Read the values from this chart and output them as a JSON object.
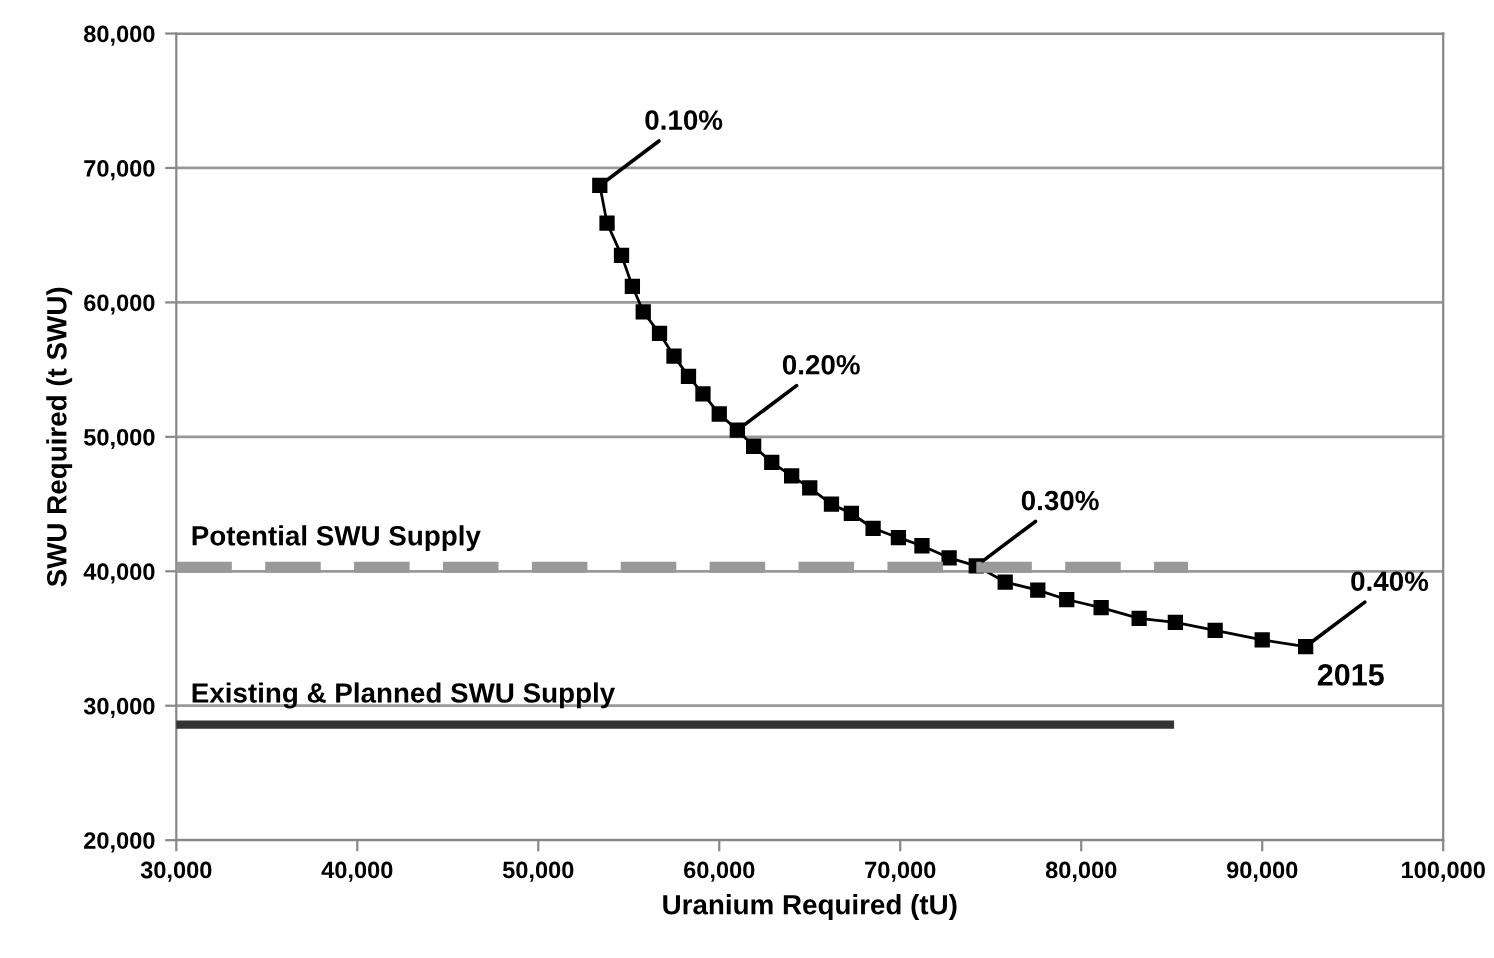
{
  "chart_data": {
    "type": "line",
    "xlabel": "Uranium Required (tU)",
    "ylabel": "SWU Required (t SWU)",
    "xlim": [
      30000,
      100000
    ],
    "ylim": [
      20000,
      80000
    ],
    "xticks": [
      {
        "value": 30000,
        "label": "30,000"
      },
      {
        "value": 40000,
        "label": "40,000"
      },
      {
        "value": 50000,
        "label": "50,000"
      },
      {
        "value": 60000,
        "label": "60,000"
      },
      {
        "value": 70000,
        "label": "70,000"
      },
      {
        "value": 80000,
        "label": "80,000"
      },
      {
        "value": 90000,
        "label": "90,000"
      },
      {
        "value": 100000,
        "label": "100,000"
      }
    ],
    "yticks": [
      {
        "value": 20000,
        "label": "20,000"
      },
      {
        "value": 30000,
        "label": "30,000"
      },
      {
        "value": 40000,
        "label": "40,000"
      },
      {
        "value": 50000,
        "label": "50,000"
      },
      {
        "value": 60000,
        "label": "60,000"
      },
      {
        "value": 70000,
        "label": "70,000"
      },
      {
        "value": 80000,
        "label": "80,000"
      }
    ],
    "grid": "y",
    "marker": "square",
    "line_style": "solid",
    "series": [
      {
        "color": "#000000",
        "x": [
          53400,
          53800,
          54600,
          55200,
          55800,
          56700,
          57500,
          58300,
          59100,
          60000,
          61000,
          61900,
          62900,
          64000,
          65000,
          66200,
          67300,
          68500,
          69900,
          71200,
          72700,
          74200,
          75800,
          77600,
          79200,
          81100,
          83200,
          85200,
          87400,
          90000,
          92400
        ],
        "values": [
          68700,
          65900,
          63500,
          61200,
          59300,
          57700,
          56000,
          54500,
          53200,
          51700,
          50500,
          49300,
          48100,
          47100,
          46200,
          45000,
          44300,
          43200,
          42500,
          41900,
          41000,
          40400,
          39200,
          38600,
          37900,
          37300,
          36500,
          36200,
          35600,
          34900,
          34400
        ]
      },
      {
        "name": "Potential SWU Supply",
        "color": "#999999",
        "marker": "none",
        "line_style": "dashed",
        "x": [
          30000,
          85900
        ],
        "values": [
          40300,
          40300
        ]
      },
      {
        "name": "Existing & Planned SWU Supply",
        "color": "#333333",
        "marker": "none",
        "line_style": "solid",
        "x": [
          30000,
          84900
        ],
        "values": [
          28600,
          28600
        ]
      }
    ],
    "annotations": [
      {
        "text": "0.10%",
        "x": 53400,
        "y": 68700
      },
      {
        "text": "0.20%",
        "x": 61000,
        "y": 50500
      },
      {
        "text": "0.30%",
        "x": 74200,
        "y": 40400
      },
      {
        "text": "0.40%",
        "x": 92400,
        "y": 34400
      },
      {
        "text": "2015",
        "x": 92400,
        "y": 34400
      }
    ]
  }
}
